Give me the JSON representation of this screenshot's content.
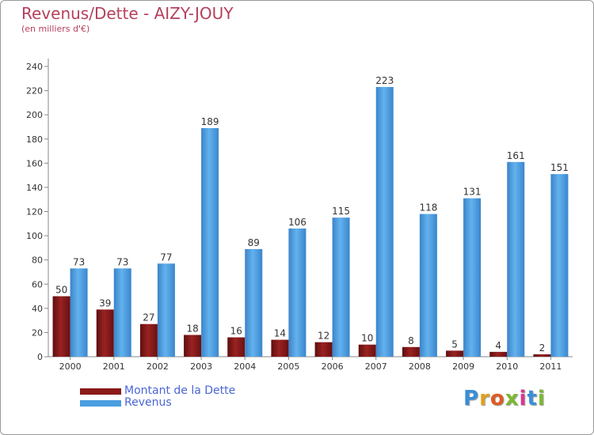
{
  "chart_data": {
    "type": "bar",
    "title": "Revenus/Dette - AIZY-JOUY",
    "subtitle": "(en milliers d'€)",
    "categories": [
      "2000",
      "2001",
      "2002",
      "2003",
      "2004",
      "2005",
      "2006",
      "2007",
      "2008",
      "2009",
      "2010",
      "2011"
    ],
    "series": [
      {
        "name": "Montant de la Dette",
        "color": "#8b1a1a",
        "values": [
          50,
          39,
          27,
          18,
          16,
          14,
          12,
          10,
          8,
          5,
          4,
          2
        ]
      },
      {
        "name": "Revenus",
        "color": "#4a9ee0",
        "values": [
          73,
          73,
          77,
          189,
          89,
          106,
          115,
          223,
          118,
          131,
          161,
          151
        ]
      }
    ],
    "ylim": [
      0,
      240
    ],
    "yticks": [
      0,
      20,
      40,
      60,
      80,
      100,
      120,
      140,
      160,
      180,
      200,
      220,
      240
    ],
    "grid": false,
    "legend_position": "bottom-left"
  },
  "logo": {
    "letters": [
      "P",
      "r",
      "o",
      "x",
      "i",
      "t",
      "i"
    ],
    "colors": [
      "#3a8fd6",
      "#e0a020",
      "#e05a20",
      "#7cb832",
      "#d63a8f",
      "#3a8fd6",
      "#7cb832"
    ]
  }
}
